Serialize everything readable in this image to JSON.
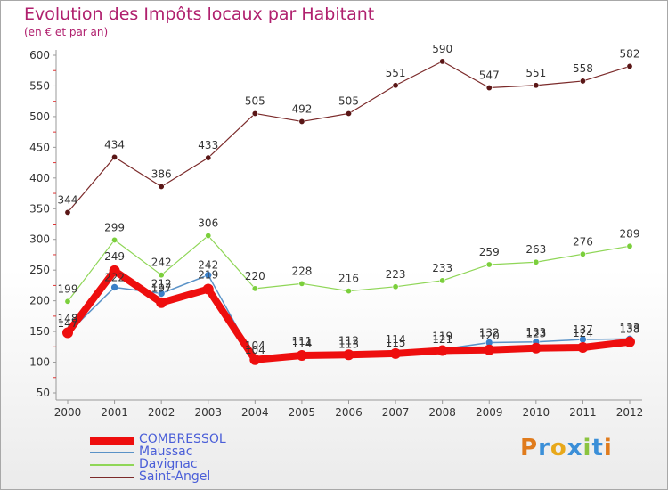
{
  "title": "Evolution des Impôts locaux par Habitant",
  "subtitle": "(en € et par an)",
  "logo": {
    "letters": [
      "P",
      "r",
      "o",
      "x",
      "i",
      "t",
      "i"
    ],
    "colors": [
      "#e07b1c",
      "#3b8fd8",
      "#e8a81a",
      "#3b8fd8",
      "#8bc43f",
      "#3b8fd8",
      "#e07b1c"
    ]
  },
  "chart_data": {
    "type": "line",
    "title": "Evolution des Impôts locaux par Habitant",
    "ylabel": "(en € et par an)",
    "xlabel": "",
    "ylim": [
      50,
      600
    ],
    "yticks": [
      "50",
      "100",
      "150",
      "200",
      "250",
      "300",
      "350",
      "400",
      "450",
      "500",
      "550",
      "600"
    ],
    "categories": [
      "2000",
      "2001",
      "2002",
      "2003",
      "2004",
      "2005",
      "2006",
      "2007",
      "2008",
      "2009",
      "2010",
      "2011",
      "2012"
    ],
    "grid": false,
    "legend_position": "bottom-left",
    "series": [
      {
        "name": "Saint-Angel",
        "color": "#7b2a2a",
        "values": [
          344,
          434,
          386,
          433,
          505,
          492,
          505,
          551,
          590,
          547,
          551,
          558,
          582
        ]
      },
      {
        "name": "Davignac",
        "color": "#8fd657",
        "values": [
          199,
          299,
          242,
          306,
          220,
          228,
          216,
          223,
          233,
          259,
          263,
          276,
          289
        ]
      },
      {
        "name": "Maussac",
        "color": "#5a92c7",
        "values": [
          147,
          222,
          212,
          242,
          104,
          114,
          113,
          115,
          121,
          132,
          133,
          137,
          138
        ]
      },
      {
        "name": "COMBRESSOL",
        "color": "#ee0e0e",
        "values": [
          148,
          249,
          197,
          219,
          104,
          111,
          112,
          114,
          119,
          120,
          123,
          124,
          133
        ]
      }
    ]
  }
}
